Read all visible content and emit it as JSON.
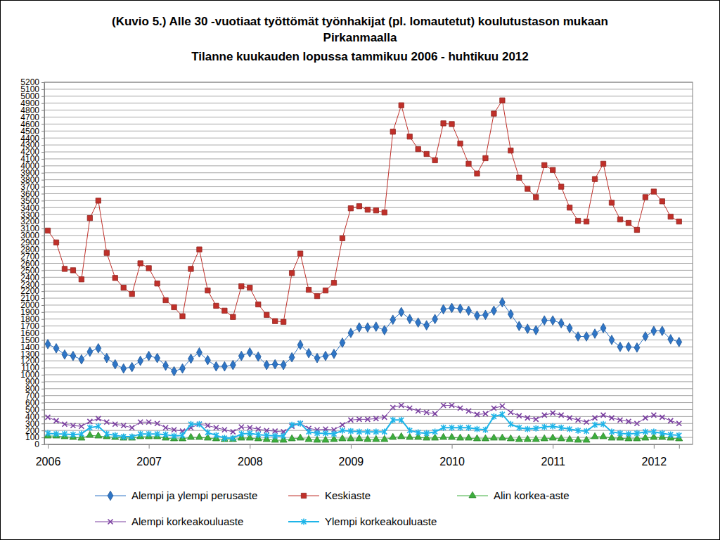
{
  "chart_data": {
    "type": "line",
    "title": "(Kuvio 5.) Alle 30 -vuotiaat työttömät työnhakijat (pl. lomautetut) koulutustason mukaan Pirkanmaalla",
    "subtitle": "Tilanne kuukauden lopussa tammikuu 2006 - huhtikuu 2012",
    "categories": [
      "2006",
      null,
      null,
      null,
      null,
      null,
      null,
      null,
      null,
      null,
      null,
      null,
      "2007",
      null,
      null,
      null,
      null,
      null,
      null,
      null,
      null,
      null,
      null,
      null,
      "2008",
      null,
      null,
      null,
      null,
      null,
      null,
      null,
      null,
      null,
      null,
      null,
      "2009",
      null,
      null,
      null,
      null,
      null,
      null,
      null,
      null,
      null,
      null,
      null,
      "2010",
      null,
      null,
      null,
      null,
      null,
      null,
      null,
      null,
      null,
      null,
      null,
      "2011",
      null,
      null,
      null,
      null,
      null,
      null,
      null,
      null,
      null,
      null,
      null,
      "2012",
      null,
      null,
      null
    ],
    "series": [
      {
        "name": "Alempi ja ylempi perusaste",
        "color": "#2e75c6",
        "marker": "diamond",
        "values": [
          1440,
          1380,
          1290,
          1270,
          1220,
          1330,
          1380,
          1240,
          1150,
          1090,
          1110,
          1200,
          1270,
          1240,
          1130,
          1050,
          1090,
          1230,
          1320,
          1210,
          1120,
          1120,
          1140,
          1270,
          1320,
          1260,
          1140,
          1150,
          1140,
          1250,
          1430,
          1310,
          1240,
          1270,
          1300,
          1460,
          1600,
          1680,
          1680,
          1690,
          1640,
          1790,
          1900,
          1800,
          1750,
          1710,
          1800,
          1940,
          1960,
          1950,
          1920,
          1850,
          1860,
          1920,
          2040,
          1870,
          1700,
          1660,
          1640,
          1780,
          1780,
          1740,
          1670,
          1550,
          1550,
          1590,
          1670,
          1500,
          1400,
          1400,
          1390,
          1550,
          1630,
          1630,
          1510,
          1470
        ]
      },
      {
        "name": "Keskiaste",
        "color": "#c0302a",
        "marker": "square",
        "values": [
          3070,
          2900,
          2520,
          2500,
          2370,
          3250,
          3500,
          2750,
          2390,
          2250,
          2160,
          2600,
          2530,
          2310,
          2070,
          1970,
          1840,
          2520,
          2800,
          2210,
          1990,
          1920,
          1830,
          2270,
          2250,
          2010,
          1860,
          1770,
          1760,
          2460,
          2740,
          2220,
          2130,
          2210,
          2320,
          2960,
          3390,
          3420,
          3370,
          3360,
          3330,
          4490,
          4870,
          4420,
          4240,
          4170,
          4080,
          4610,
          4600,
          4320,
          4030,
          3890,
          4110,
          4750,
          4940,
          4220,
          3830,
          3670,
          3550,
          4010,
          3940,
          3700,
          3400,
          3210,
          3200,
          3810,
          4030,
          3470,
          3230,
          3180,
          3080,
          3550,
          3630,
          3490,
          3270,
          3200
        ]
      },
      {
        "name": "Alin korkea-aste",
        "color": "#3cae3c",
        "marker": "triangle",
        "values": [
          120,
          120,
          110,
          100,
          90,
          130,
          120,
          110,
          100,
          90,
          90,
          110,
          110,
          110,
          90,
          80,
          80,
          100,
          100,
          90,
          80,
          70,
          70,
          90,
          90,
          80,
          70,
          60,
          60,
          80,
          90,
          70,
          60,
          60,
          70,
          80,
          80,
          80,
          70,
          70,
          70,
          100,
          110,
          100,
          100,
          90,
          90,
          100,
          100,
          90,
          90,
          80,
          80,
          90,
          90,
          80,
          70,
          70,
          70,
          80,
          90,
          80,
          70,
          60,
          60,
          110,
          110,
          90,
          90,
          80,
          80,
          90,
          100,
          100,
          90,
          80
        ]
      },
      {
        "name": "Alempi korkeakouluaste",
        "color": "#7a3fa0",
        "marker": "x",
        "values": [
          390,
          340,
          290,
          270,
          260,
          330,
          370,
          320,
          290,
          270,
          240,
          320,
          320,
          300,
          240,
          210,
          190,
          240,
          290,
          270,
          240,
          210,
          180,
          250,
          240,
          220,
          200,
          190,
          180,
          260,
          300,
          230,
          210,
          220,
          210,
          280,
          350,
          360,
          360,
          370,
          390,
          530,
          560,
          520,
          480,
          460,
          440,
          560,
          560,
          520,
          480,
          430,
          440,
          520,
          550,
          460,
          410,
          380,
          360,
          420,
          450,
          420,
          380,
          350,
          320,
          380,
          420,
          380,
          350,
          330,
          300,
          380,
          420,
          390,
          340,
          300
        ]
      },
      {
        "name": "Ylempi korkeakouluaste",
        "color": "#1eb4e8",
        "marker": "asterisk",
        "values": [
          160,
          150,
          150,
          140,
          150,
          240,
          260,
          150,
          130,
          110,
          110,
          150,
          150,
          150,
          140,
          120,
          130,
          290,
          290,
          170,
          130,
          90,
          90,
          150,
          160,
          140,
          130,
          120,
          120,
          280,
          300,
          180,
          160,
          160,
          150,
          200,
          190,
          180,
          180,
          180,
          180,
          350,
          350,
          200,
          170,
          160,
          180,
          240,
          240,
          240,
          240,
          220,
          210,
          400,
          430,
          290,
          240,
          220,
          230,
          250,
          260,
          240,
          220,
          200,
          190,
          280,
          290,
          180,
          160,
          150,
          160,
          180,
          180,
          160,
          140,
          130
        ]
      }
    ],
    "ylim": [
      0,
      5200
    ],
    "yticks": [
      0,
      100,
      200,
      300,
      400,
      500,
      600,
      700,
      800,
      900,
      1000,
      1100,
      1200,
      1300,
      1400,
      1500,
      1600,
      1700,
      1800,
      1900,
      2000,
      2100,
      2200,
      2300,
      2400,
      2500,
      2600,
      2700,
      2800,
      2900,
      3000,
      3100,
      3200,
      3300,
      3400,
      3500,
      3600,
      3700,
      3800,
      3900,
      4000,
      4100,
      4200,
      4300,
      4400,
      4500,
      4600,
      4700,
      4800,
      4900,
      5000,
      5100,
      5200
    ],
    "grid": true,
    "legend": "bottom"
  }
}
